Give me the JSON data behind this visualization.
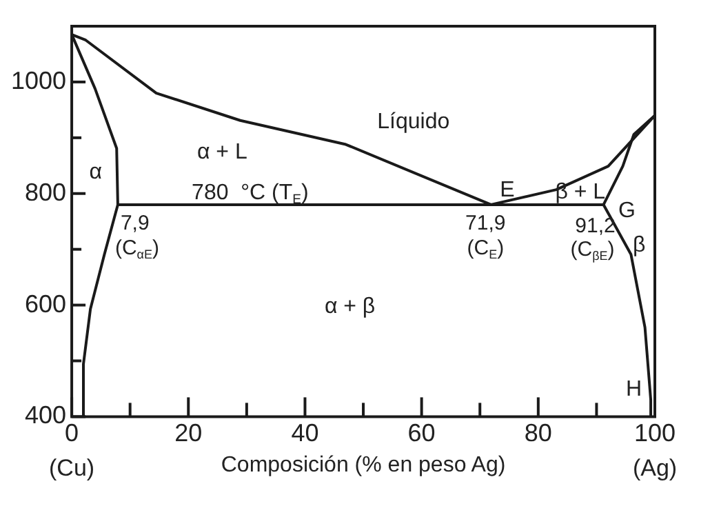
{
  "chart_data": {
    "type": "line",
    "xlabel": "Composición (% en peso Ag)",
    "xlim": [
      0,
      100
    ],
    "ylim": [
      400,
      1100
    ],
    "xticks": [
      0,
      {
        "value": 10,
        "label": null
      },
      20,
      {
        "value": 30,
        "label": null
      },
      40,
      {
        "value": 50,
        "label": null
      },
      60,
      {
        "value": 70,
        "label": null
      },
      80,
      {
        "value": 90,
        "label": null
      },
      100
    ],
    "yticks": [
      400,
      {
        "value": 500,
        "label": null
      },
      600,
      {
        "value": 700,
        "label": null
      },
      800,
      {
        "value": 900,
        "label": null
      },
      1000
    ],
    "grid": false,
    "legend": false,
    "marker": "none",
    "line_style": "solid",
    "series": [
      {
        "color": "#1a1a1a",
        "x": [
          0,
          2.4,
          14.5,
          28.9,
          47,
          71.9
        ],
        "values": [
          1085,
          1075,
          980,
          931,
          888,
          780
        ]
      },
      {
        "color": "#1a1a1a",
        "x": [
          71.9,
          83.1,
          92,
          100
        ],
        "values": [
          780,
          807,
          849,
          940
        ]
      },
      {
        "color": "#1a1a1a",
        "x": [
          7.9,
          91.2
        ],
        "values": [
          780,
          780
        ]
      },
      {
        "color": "#1a1a1a",
        "x": [
          0,
          4,
          7.7,
          7.9,
          5.6,
          3.2,
          2,
          2
        ],
        "values": [
          1085,
          988,
          881,
          780,
          691,
          593,
          494,
          400
        ]
      },
      {
        "color": "#1a1a1a",
        "x": [
          100,
          96.4,
          94.5,
          91.2,
          95.9,
          98.3,
          99.3,
          99.3
        ],
        "values": [
          940,
          906,
          849,
          780,
          691,
          560,
          430,
          400
        ]
      }
    ],
    "annotations": [
      "Líquido",
      "α + L",
      "α",
      "780  °C (T$_{E}$)",
      "E",
      "β + L",
      "G",
      "β",
      "α + β",
      "H",
      {
        "text": "7,9",
        "x": 7.9,
        "y": 780
      },
      {
        "text": "(C$_{αE}$)",
        "x": 7.9,
        "y": 780
      },
      {
        "text": "71,9",
        "x": 71.9,
        "y": 780
      },
      {
        "text": "(C$_{E}$)",
        "x": 71.9,
        "y": 780
      },
      {
        "text": "91,2",
        "x": 91.2,
        "y": 780
      },
      {
        "text": "(C$_{βE}$)",
        "x": 91.2,
        "y": 780
      },
      "(Cu)",
      "(Ag)"
    ]
  }
}
